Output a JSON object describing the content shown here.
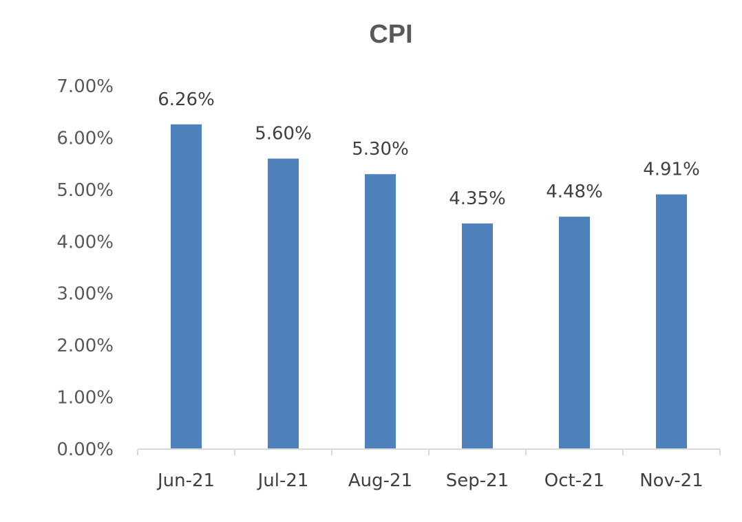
{
  "chart_data": {
    "type": "bar",
    "title": "CPI",
    "categories": [
      "Jun-21",
      "Jul-21",
      "Aug-21",
      "Sep-21",
      "Oct-21",
      "Nov-21"
    ],
    "values": [
      6.26,
      5.6,
      5.3,
      4.35,
      4.48,
      4.91
    ],
    "data_labels": [
      "6.26%",
      "5.60%",
      "5.30%",
      "4.35%",
      "4.48%",
      "4.91%"
    ],
    "y_ticks": [
      "0.00%",
      "1.00%",
      "2.00%",
      "3.00%",
      "4.00%",
      "5.00%",
      "6.00%",
      "7.00%"
    ],
    "ylim": [
      0,
      7
    ],
    "xlabel": "",
    "ylabel": "",
    "grid": false,
    "legend": "none",
    "bar_color": "#4F81BD",
    "axis_color": "#D9D9D9"
  }
}
